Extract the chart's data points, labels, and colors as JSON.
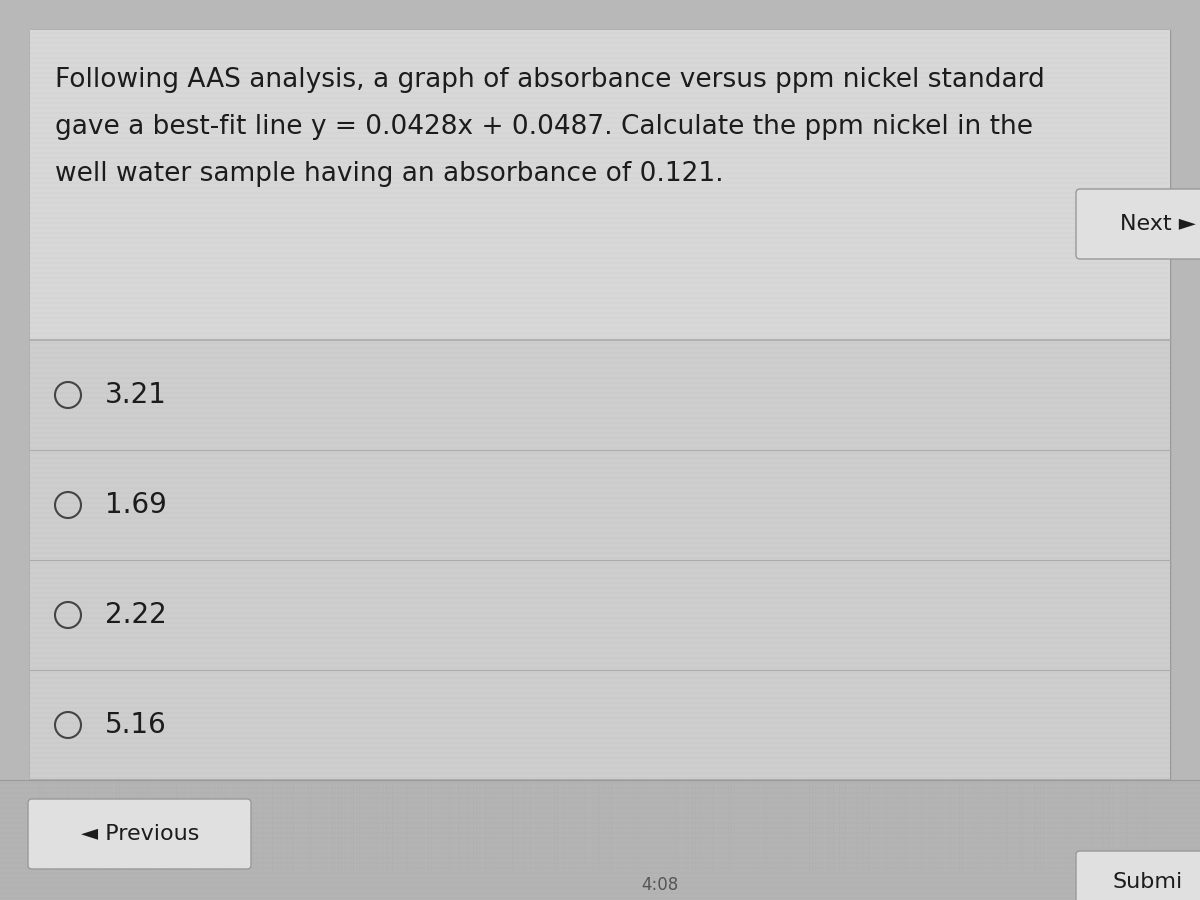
{
  "question_text_lines": [
    "Following AAS analysis, a graph of absorbance versus ppm nickel standard",
    "gave a best-fit line y = 0.0428x + 0.0487. Calculate the ppm nickel in the",
    "well water sample having an absorbance of 0.121."
  ],
  "options": [
    "3.21",
    "1.69",
    "2.22",
    "5.16"
  ],
  "bg_color_outer": "#b8b8b8",
  "bg_color_content": "#d6d6d6",
  "bg_color_options": "#cecece",
  "text_color": "#1c1c1c",
  "circle_color": "#444444",
  "nav_btn_bg": "#e2e2e2",
  "nav_btn_border": "#aaaaaa",
  "separator_color": "#aaaaaa",
  "font_size_question": 19,
  "font_size_options": 20,
  "font_size_nav": 16,
  "previous_text": "◄ Previous",
  "next_text": "Next ►",
  "submit_text": "Submi",
  "timestamp_text": "4:08"
}
